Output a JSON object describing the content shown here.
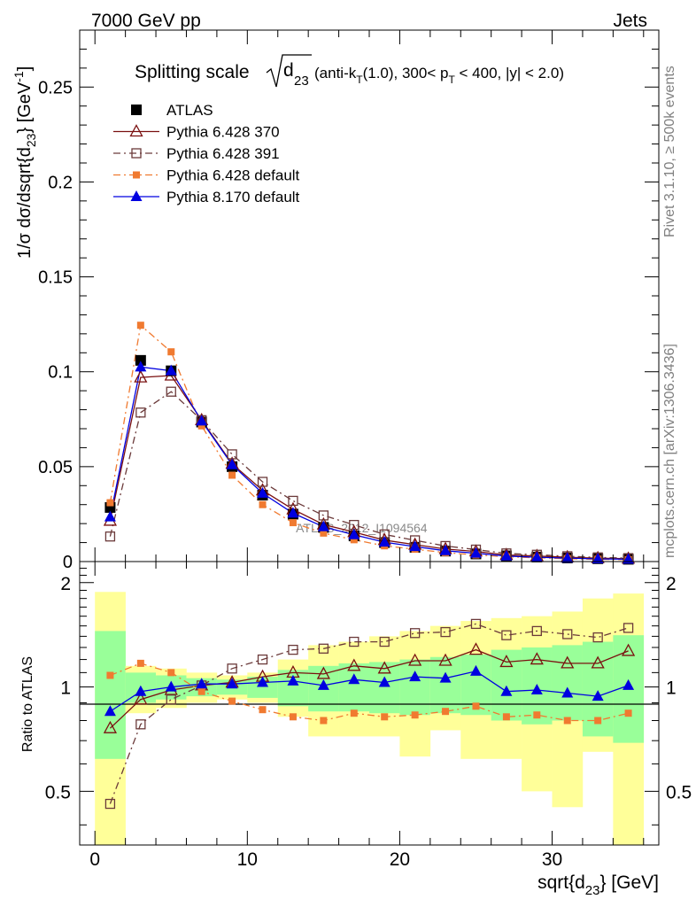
{
  "header": {
    "left": "7000 GeV pp",
    "right": "Jets"
  },
  "side_text": {
    "rivet": "Rivet 3.1.10, ≥ 500k events",
    "mcplots": "mcplots.cern.ch [arXiv:1306.3436]"
  },
  "chart_data": [
    {
      "type": "scatter",
      "panel": "main",
      "title": {
        "prefix": "Splitting scale",
        "sqrt_base": "d",
        "sqrt_sub": "23",
        "tail_1": "(anti-k",
        "tail_sub_1": "T",
        "tail_2": "(1.0), 300< p",
        "tail_sub_2": "T",
        "tail_3": " < 400, |y| < 2.0)"
      },
      "watermark": "ATLAS_2012_I1094564",
      "ylabel": {
        "part1": "1/σ dσ/dsqrt{d",
        "sub": "23",
        "part2": "} [GeV",
        "sup": "-1",
        "part3": "]"
      },
      "xlim": [
        -1,
        37
      ],
      "ylim": [
        0,
        0.28
      ],
      "yticks": [
        0,
        0.05,
        0.1,
        0.15,
        0.2,
        0.25
      ],
      "ytick_labels": [
        "0",
        "0.05",
        "0.1",
        "0.15",
        "0.2",
        "0.25"
      ],
      "legend_position": "top-left",
      "x": [
        1,
        3,
        5,
        7,
        9,
        11,
        13,
        15,
        17,
        19,
        21,
        23,
        25,
        27,
        29,
        31,
        33,
        35
      ],
      "series": [
        {
          "name": "ATLAS",
          "color": "#000000",
          "marker": "square-filled",
          "line": "none",
          "values": [
            0.0285,
            0.106,
            0.1005,
            0.0735,
            0.05,
            0.035,
            0.025,
            0.018,
            0.0135,
            0.01,
            0.0075,
            0.0055,
            0.004,
            0.003,
            0.0024,
            0.0019,
            0.0015,
            0.0012
          ]
        },
        {
          "name": "Pythia 6.428 370",
          "color": "#7a1010",
          "marker": "triangle-open",
          "line": "solid",
          "values": [
            0.0215,
            0.097,
            0.098,
            0.0745,
            0.0515,
            0.0375,
            0.0275,
            0.0195,
            0.0155,
            0.0113,
            0.0089,
            0.0066,
            0.0053,
            0.0035,
            0.0029,
            0.0023,
            0.0018,
            0.0015
          ]
        },
        {
          "name": "Pythia 6.428 391",
          "color": "#6b3a3a",
          "marker": "square-open",
          "line": "dashdot",
          "values": [
            0.0132,
            0.0785,
            0.0895,
            0.0745,
            0.0565,
            0.042,
            0.032,
            0.0243,
            0.0193,
            0.0143,
            0.0112,
            0.0082,
            0.0063,
            0.0043,
            0.0036,
            0.0028,
            0.0022,
            0.0018
          ]
        },
        {
          "name": "Pythia 6.428 default",
          "color": "#f07a30",
          "marker": "square-filled-small",
          "line": "dashdot",
          "values": [
            0.031,
            0.1245,
            0.1105,
            0.0715,
            0.0455,
            0.03,
            0.0205,
            0.015,
            0.0115,
            0.0083,
            0.0065,
            0.0047,
            0.0035,
            0.0025,
            0.002,
            0.0015,
            0.0012,
            0.001
          ]
        },
        {
          "name": "Pythia 8.170 default",
          "color": "#0000e0",
          "marker": "triangle-filled",
          "line": "solid",
          "values": [
            0.0235,
            0.1025,
            0.1005,
            0.074,
            0.051,
            0.036,
            0.0255,
            0.0183,
            0.0141,
            0.0102,
            0.0079,
            0.0057,
            0.0044,
            0.0029,
            0.0023,
            0.0018,
            0.0014,
            0.0012
          ]
        }
      ]
    },
    {
      "type": "line",
      "panel": "ratio",
      "ylabel": "Ratio to ATLAS",
      "xlabel": {
        "part1": "sqrt{d",
        "sub": "23",
        "part2": "} [GeV]"
      },
      "xlim": [
        -1,
        37
      ],
      "ylim": [
        0.35,
        2.3
      ],
      "xticks": [
        0,
        10,
        20,
        30
      ],
      "xtick_labels": [
        "0",
        "10",
        "20",
        "30"
      ],
      "yticks": [
        0.5,
        1,
        2
      ],
      "ytick_labels": [
        "0.5",
        "1",
        "2"
      ],
      "reference_line": 1,
      "uncertainty_bands": {
        "bin_edges": [
          0,
          2,
          4,
          6,
          8,
          10,
          12,
          14,
          16,
          18,
          20,
          22,
          24,
          26,
          28,
          30,
          32,
          34,
          36
        ],
        "total_low": [
          0.32,
          0.84,
          0.87,
          0.9,
          0.92,
          0.9,
          0.82,
          0.72,
          0.72,
          0.72,
          0.63,
          0.75,
          0.62,
          0.62,
          0.5,
          0.45,
          0.65,
          0.32
        ],
        "total_high": [
          1.88,
          1.15,
          1.13,
          1.1,
          1.08,
          1.1,
          1.2,
          1.32,
          1.35,
          1.4,
          1.45,
          1.5,
          1.55,
          1.58,
          1.6,
          1.65,
          1.8,
          1.86
        ],
        "stat_low": [
          0.62,
          0.9,
          0.92,
          0.94,
          0.95,
          0.93,
          0.88,
          0.85,
          0.85,
          0.84,
          0.83,
          0.84,
          0.83,
          0.8,
          0.78,
          0.8,
          0.72,
          0.69
        ],
        "stat_high": [
          1.45,
          1.1,
          1.08,
          1.06,
          1.05,
          1.07,
          1.12,
          1.15,
          1.17,
          1.18,
          1.2,
          1.22,
          1.24,
          1.28,
          1.3,
          1.32,
          1.35,
          1.41
        ]
      },
      "band_colors": {
        "total": "#ffff99",
        "stat": "#99ff99"
      },
      "series": [
        {
          "name": "Pythia 6.428 370",
          "color": "#7a1010",
          "marker": "triangle-open",
          "line": "solid",
          "values": [
            0.76,
            0.92,
            0.98,
            1.01,
            1.03,
            1.07,
            1.1,
            1.09,
            1.15,
            1.13,
            1.19,
            1.19,
            1.28,
            1.18,
            1.2,
            1.17,
            1.17,
            1.27
          ]
        },
        {
          "name": "Pythia 6.428 391",
          "color": "#6b3a3a",
          "marker": "square-open",
          "line": "dashdot",
          "values": [
            0.46,
            0.78,
            0.92,
            1.01,
            1.13,
            1.2,
            1.28,
            1.29,
            1.35,
            1.35,
            1.43,
            1.44,
            1.52,
            1.41,
            1.45,
            1.42,
            1.39,
            1.48
          ]
        },
        {
          "name": "Pythia 6.428 default",
          "color": "#f07a30",
          "marker": "square-filled-small",
          "line": "dashdot",
          "values": [
            1.08,
            1.17,
            1.1,
            0.97,
            0.91,
            0.86,
            0.82,
            0.8,
            0.84,
            0.82,
            0.83,
            0.85,
            0.88,
            0.82,
            0.83,
            0.8,
            0.8,
            0.84
          ]
        },
        {
          "name": "Pythia 8.170 default",
          "color": "#0000e0",
          "marker": "triangle-filled",
          "line": "solid",
          "values": [
            0.85,
            0.97,
            1.0,
            1.02,
            1.02,
            1.03,
            1.04,
            1.01,
            1.05,
            1.03,
            1.07,
            1.06,
            1.11,
            0.97,
            0.98,
            0.96,
            0.94,
            1.01
          ]
        }
      ]
    }
  ]
}
